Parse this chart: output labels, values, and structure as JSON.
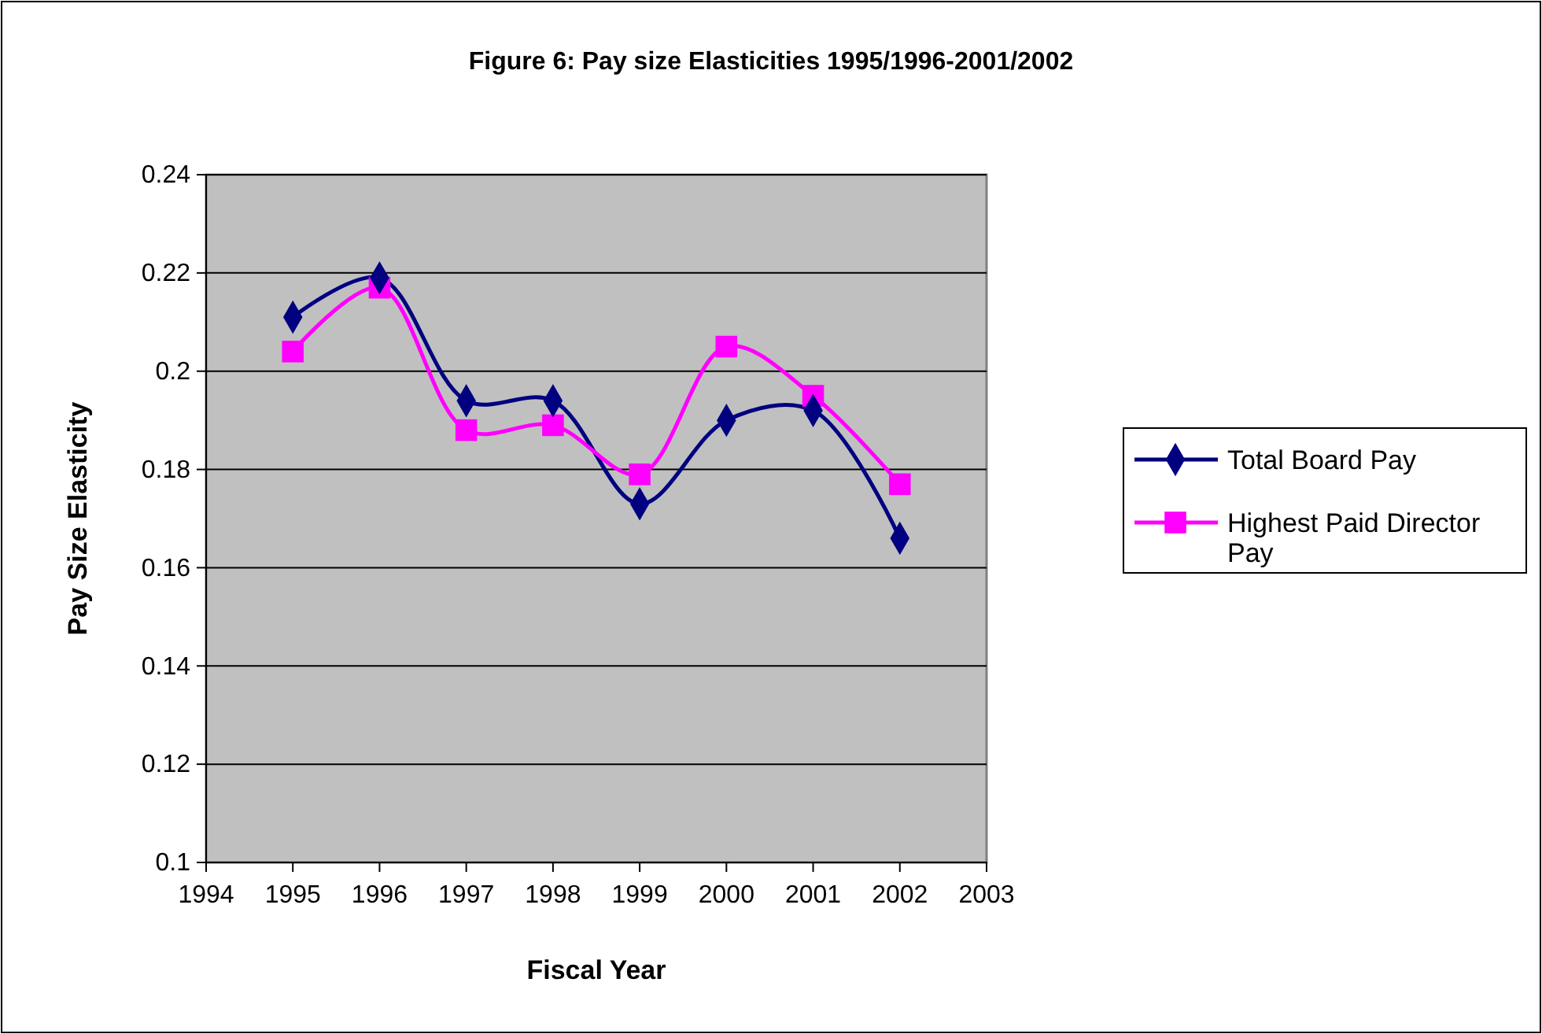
{
  "chart_data": {
    "type": "line",
    "title": "Figure 6: Pay size Elasticities 1995/1996-2001/2002",
    "xlabel": "Fiscal Year",
    "ylabel": "Pay Size Elasticity",
    "x": [
      1995,
      1996,
      1997,
      1998,
      1999,
      2000,
      2001,
      2002
    ],
    "series": [
      {
        "name": "Total Board Pay",
        "color": "#000080",
        "marker": "diamond",
        "values": [
          0.211,
          0.219,
          0.194,
          0.194,
          0.173,
          0.19,
          0.192,
          0.166
        ]
      },
      {
        "name": "Highest Paid Director Pay",
        "color": "#ff00ff",
        "marker": "square",
        "values": [
          0.204,
          0.217,
          0.188,
          0.189,
          0.179,
          0.205,
          0.195,
          0.177
        ]
      }
    ],
    "xlim": [
      1994,
      2003
    ],
    "xticks": [
      1994,
      1995,
      1996,
      1997,
      1998,
      1999,
      2000,
      2001,
      2002,
      2003
    ],
    "ylim": [
      0.1,
      0.24
    ],
    "yticks": [
      {
        "value": 0.1,
        "label": "0.1"
      },
      {
        "value": 0.12,
        "label": "0.12"
      },
      {
        "value": 0.14,
        "label": "0.14"
      },
      {
        "value": 0.16,
        "label": "0.16"
      },
      {
        "value": 0.18,
        "label": "0.18"
      },
      {
        "value": 0.2,
        "label": "0.2"
      },
      {
        "value": 0.22,
        "label": "0.22"
      },
      {
        "value": 0.24,
        "label": "0.24"
      }
    ],
    "grid": "y",
    "legend": "right",
    "line_style": "solid"
  }
}
